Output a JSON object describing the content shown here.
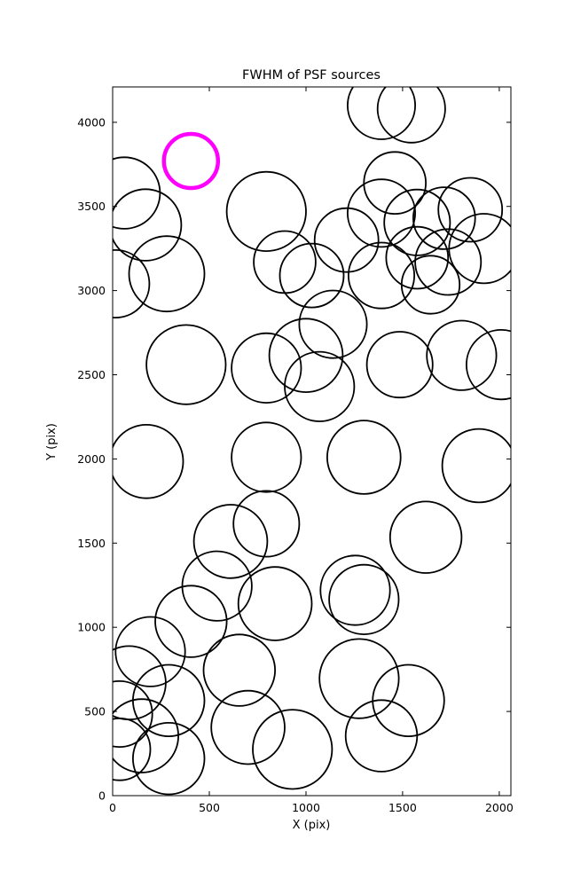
{
  "figure": {
    "title": "FWHM of PSF sources",
    "xlabel": "X (pix)",
    "ylabel": "Y (pix)"
  },
  "chart_data": {
    "type": "scatter",
    "title": "FWHM of PSF sources",
    "xlabel": "X (pix)",
    "ylabel": "Y (pix)",
    "xlim": [
      0,
      2060
    ],
    "ylim": [
      0,
      4210
    ],
    "xticks": [
      0,
      500,
      1000,
      1500,
      2000
    ],
    "yticks": [
      0,
      500,
      1000,
      1500,
      2000,
      2500,
      3000,
      3500,
      4000
    ],
    "grid": false,
    "legend": "none",
    "marker": "open-circle",
    "colors": {
      "default": "#000000",
      "highlight": "#FF00FF"
    },
    "points": [
      {
        "x": 1390,
        "y": 4100,
        "r": 175
      },
      {
        "x": 1545,
        "y": 4080,
        "r": 175
      },
      {
        "x": 405,
        "y": 3770,
        "r": 140,
        "color": "#FF00FF",
        "lw": 4.5
      },
      {
        "x": 60,
        "y": 3580,
        "r": 185
      },
      {
        "x": 170,
        "y": 3390,
        "r": 185
      },
      {
        "x": 15,
        "y": 3040,
        "r": 175
      },
      {
        "x": 280,
        "y": 3100,
        "r": 195
      },
      {
        "x": 795,
        "y": 3470,
        "r": 205
      },
      {
        "x": 890,
        "y": 3170,
        "r": 160
      },
      {
        "x": 1030,
        "y": 3090,
        "r": 165
      },
      {
        "x": 1210,
        "y": 3300,
        "r": 165
      },
      {
        "x": 1390,
        "y": 3460,
        "r": 175
      },
      {
        "x": 1460,
        "y": 3640,
        "r": 160
      },
      {
        "x": 1575,
        "y": 3405,
        "r": 170
      },
      {
        "x": 1715,
        "y": 3430,
        "r": 160
      },
      {
        "x": 1850,
        "y": 3480,
        "r": 165
      },
      {
        "x": 1575,
        "y": 3195,
        "r": 160
      },
      {
        "x": 1735,
        "y": 3170,
        "r": 170
      },
      {
        "x": 1920,
        "y": 3250,
        "r": 180
      },
      {
        "x": 1390,
        "y": 3090,
        "r": 170
      },
      {
        "x": 1645,
        "y": 3035,
        "r": 150
      },
      {
        "x": 380,
        "y": 2560,
        "r": 205
      },
      {
        "x": 795,
        "y": 2540,
        "r": 180
      },
      {
        "x": 1000,
        "y": 2615,
        "r": 190
      },
      {
        "x": 1070,
        "y": 2430,
        "r": 180
      },
      {
        "x": 1140,
        "y": 2800,
        "r": 175
      },
      {
        "x": 1485,
        "y": 2560,
        "r": 170
      },
      {
        "x": 1805,
        "y": 2615,
        "r": 180
      },
      {
        "x": 2010,
        "y": 2560,
        "r": 180
      },
      {
        "x": 175,
        "y": 1985,
        "r": 190
      },
      {
        "x": 795,
        "y": 2010,
        "r": 180
      },
      {
        "x": 1300,
        "y": 2010,
        "r": 190
      },
      {
        "x": 1895,
        "y": 1960,
        "r": 190
      },
      {
        "x": 610,
        "y": 1510,
        "r": 190
      },
      {
        "x": 795,
        "y": 1615,
        "r": 170
      },
      {
        "x": 1620,
        "y": 1535,
        "r": 185
      },
      {
        "x": 540,
        "y": 1245,
        "r": 180
      },
      {
        "x": 840,
        "y": 1140,
        "r": 190
      },
      {
        "x": 1255,
        "y": 1220,
        "r": 180
      },
      {
        "x": 1300,
        "y": 1165,
        "r": 180
      },
      {
        "x": 405,
        "y": 1035,
        "r": 185
      },
      {
        "x": 655,
        "y": 745,
        "r": 185
      },
      {
        "x": 195,
        "y": 855,
        "r": 180
      },
      {
        "x": 85,
        "y": 670,
        "r": 190
      },
      {
        "x": 290,
        "y": 565,
        "r": 185
      },
      {
        "x": 1275,
        "y": 695,
        "r": 205
      },
      {
        "x": 1530,
        "y": 565,
        "r": 185
      },
      {
        "x": 35,
        "y": 485,
        "r": 170
      },
      {
        "x": 150,
        "y": 355,
        "r": 190
      },
      {
        "x": 290,
        "y": 220,
        "r": 185
      },
      {
        "x": 35,
        "y": 275,
        "r": 160
      },
      {
        "x": 700,
        "y": 405,
        "r": 190
      },
      {
        "x": 930,
        "y": 275,
        "r": 205
      },
      {
        "x": 1390,
        "y": 355,
        "r": 185
      }
    ]
  }
}
